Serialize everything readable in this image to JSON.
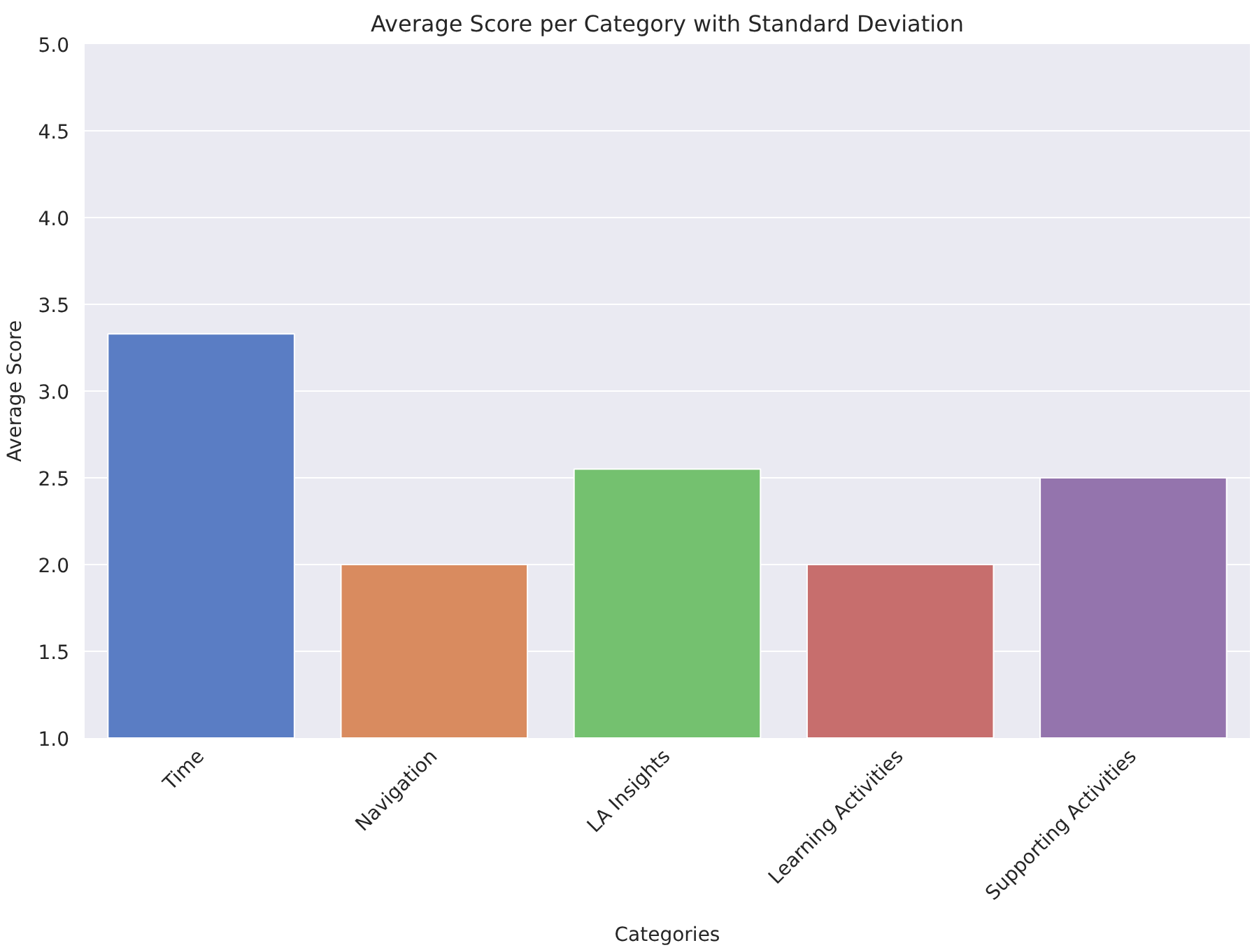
{
  "chart_data": {
    "type": "bar",
    "title": "Average Score per Category with Standard Deviation",
    "xlabel": "Categories",
    "ylabel": "Average Score",
    "categories": [
      "Time",
      "Navigation",
      "LA Insights",
      "Learning Activities",
      "Supporting Activities"
    ],
    "values": [
      3.33,
      2.0,
      2.55,
      2.0,
      2.5
    ],
    "colors": [
      "#5a7dc4",
      "#d98b5f",
      "#74c16f",
      "#c76e6d",
      "#9474ad"
    ],
    "ylim": [
      1.0,
      5.0
    ],
    "yticks": [
      {
        "value": 1.0,
        "label": "1.0"
      },
      {
        "value": 1.5,
        "label": "1.5"
      },
      {
        "value": 2.0,
        "label": "2.0"
      },
      {
        "value": 2.5,
        "label": "2.5"
      },
      {
        "value": 3.0,
        "label": "3.0"
      },
      {
        "value": 3.5,
        "label": "3.5"
      },
      {
        "value": 4.0,
        "label": "4.0"
      },
      {
        "value": 4.5,
        "label": "4.5"
      },
      {
        "value": 5.0,
        "label": "5.0"
      }
    ],
    "grid": "y"
  }
}
